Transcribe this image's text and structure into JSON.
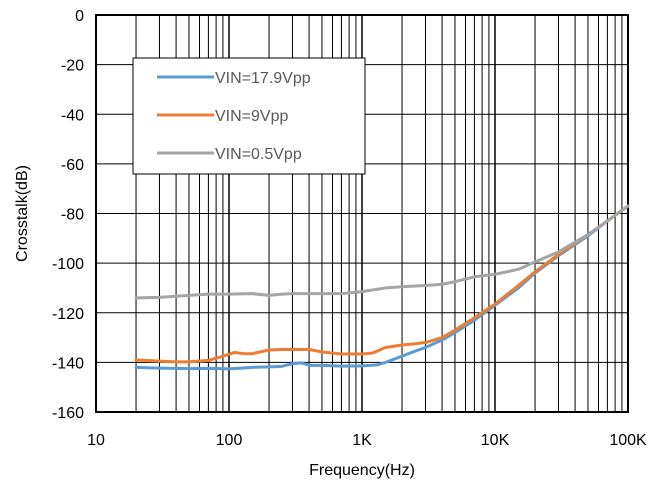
{
  "chart_data": {
    "type": "line",
    "xlabel": "Frequency(Hz)",
    "ylabel": "Crosstalk(dB)",
    "x_scale": "log",
    "xlim": [
      10,
      100000
    ],
    "ylim": [
      -160,
      0
    ],
    "grid": true,
    "legend_position": "top-left",
    "x_ticks": [
      {
        "value": 10,
        "label": "10"
      },
      {
        "value": 100,
        "label": "100"
      },
      {
        "value": 1000,
        "label": "1K"
      },
      {
        "value": 10000,
        "label": "10K"
      },
      {
        "value": 100000,
        "label": "100K"
      }
    ],
    "y_ticks": [
      0,
      -20,
      -40,
      -60,
      -80,
      -100,
      -120,
      -140,
      -160
    ],
    "series": [
      {
        "name": "VIN=17.9Vpp",
        "color": "#5B9BD5",
        "points": [
          [
            20,
            -142
          ],
          [
            30,
            -142.3
          ],
          [
            50,
            -142.5
          ],
          [
            70,
            -142.4
          ],
          [
            100,
            -142.6
          ],
          [
            150,
            -142
          ],
          [
            200,
            -141.8
          ],
          [
            250,
            -141.6
          ],
          [
            300,
            -140.5
          ],
          [
            350,
            -140.2
          ],
          [
            400,
            -141.2
          ],
          [
            500,
            -141.2
          ],
          [
            700,
            -141.5
          ],
          [
            1000,
            -141.4
          ],
          [
            1300,
            -141
          ],
          [
            1500,
            -140
          ],
          [
            2000,
            -137.5
          ],
          [
            2500,
            -135.5
          ],
          [
            3000,
            -134
          ],
          [
            4000,
            -131
          ],
          [
            5000,
            -128
          ],
          [
            7000,
            -123
          ],
          [
            10000,
            -117
          ],
          [
            15000,
            -110
          ],
          [
            20000,
            -104
          ],
          [
            30000,
            -97
          ],
          [
            50000,
            -89
          ],
          [
            70000,
            -83
          ],
          [
            100000,
            -77
          ]
        ]
      },
      {
        "name": "VIN=9Vpp",
        "color": "#ED7D31",
        "points": [
          [
            20,
            -139
          ],
          [
            30,
            -139.5
          ],
          [
            40,
            -139.8
          ],
          [
            50,
            -139.8
          ],
          [
            70,
            -139.2
          ],
          [
            90,
            -137.5
          ],
          [
            110,
            -136
          ],
          [
            130,
            -136.5
          ],
          [
            150,
            -136.5
          ],
          [
            200,
            -135
          ],
          [
            250,
            -134.8
          ],
          [
            300,
            -134.8
          ],
          [
            400,
            -134.8
          ],
          [
            500,
            -135.8
          ],
          [
            700,
            -136.6
          ],
          [
            1000,
            -136.6
          ],
          [
            1200,
            -136.2
          ],
          [
            1500,
            -134
          ],
          [
            2000,
            -133
          ],
          [
            2500,
            -132.5
          ],
          [
            3000,
            -132
          ],
          [
            4000,
            -130
          ],
          [
            5000,
            -127
          ],
          [
            7000,
            -122
          ],
          [
            10000,
            -116.5
          ],
          [
            15000,
            -109
          ],
          [
            20000,
            -103.5
          ],
          [
            30000,
            -96.5
          ],
          [
            50000,
            -88.5
          ],
          [
            70000,
            -83
          ],
          [
            100000,
            -77
          ]
        ]
      },
      {
        "name": "VIN=0.5Vpp",
        "color": "#A5A5A5",
        "points": [
          [
            20,
            -114
          ],
          [
            30,
            -113.8
          ],
          [
            50,
            -113
          ],
          [
            70,
            -112.5
          ],
          [
            100,
            -112.5
          ],
          [
            150,
            -112.3
          ],
          [
            200,
            -113
          ],
          [
            250,
            -112.5
          ],
          [
            300,
            -112.3
          ],
          [
            500,
            -112.3
          ],
          [
            700,
            -112.3
          ],
          [
            1000,
            -111.5
          ],
          [
            1500,
            -110
          ],
          [
            2000,
            -109.5
          ],
          [
            3000,
            -109
          ],
          [
            4000,
            -108.5
          ],
          [
            5000,
            -107.5
          ],
          [
            7000,
            -105.5
          ],
          [
            10000,
            -104.5
          ],
          [
            15000,
            -102.5
          ],
          [
            20000,
            -99.5
          ],
          [
            30000,
            -95.5
          ],
          [
            50000,
            -88.5
          ],
          [
            70000,
            -83
          ],
          [
            100000,
            -77
          ]
        ]
      }
    ]
  }
}
